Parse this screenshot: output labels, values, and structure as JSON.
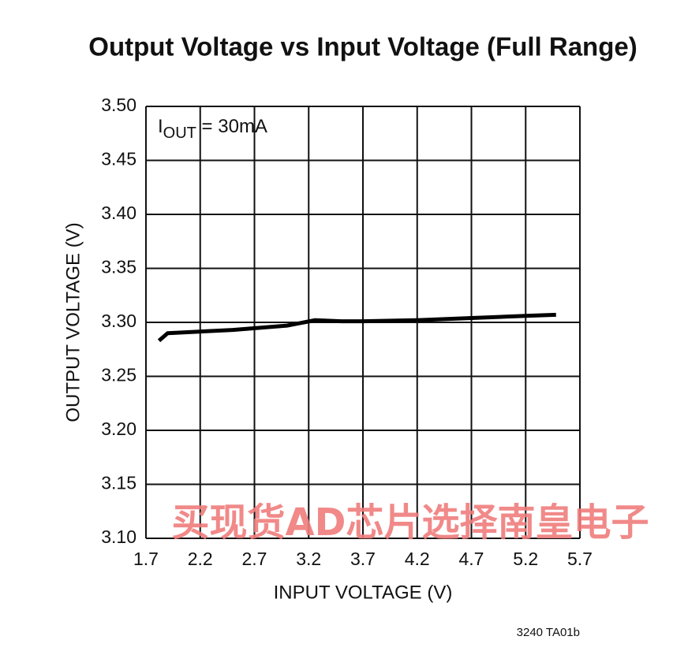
{
  "chart_data": {
    "type": "line",
    "title": "Output Voltage vs Input Voltage (Full Range)",
    "x_label": "INPUT VOLTAGE (V)",
    "y_label": "OUTPUT VOLTAGE (V)",
    "annotation": {
      "main": "I",
      "sub": "OUT",
      "rest": " = 30mA"
    },
    "figure_id": "3240 TA01b",
    "watermark": "买现货AD芯片选择南皇电子",
    "x": [
      1.82,
      1.9,
      2.5,
      3.0,
      3.26,
      3.5,
      3.7,
      4.2,
      4.7,
      5.2,
      5.48
    ],
    "series": [
      {
        "color": "#000000",
        "values": [
          3.283,
          3.29,
          3.293,
          3.297,
          3.302,
          3.301,
          3.301,
          3.302,
          3.304,
          3.306,
          3.307
        ]
      }
    ],
    "xlim": [
      1.7,
      5.7
    ],
    "xticks": [
      1.7,
      2.2,
      2.7,
      3.2,
      3.7,
      4.2,
      4.7,
      5.2,
      5.7
    ],
    "ylim": [
      3.1,
      3.5
    ],
    "yticks": [
      {
        "value": 3.1,
        "label": "3.10"
      },
      {
        "value": 3.15,
        "label": "3.15"
      },
      {
        "value": 3.2,
        "label": "3.20"
      },
      {
        "value": 3.25,
        "label": "3.25"
      },
      {
        "value": 3.3,
        "label": "3.30"
      },
      {
        "value": 3.35,
        "label": "3.35"
      },
      {
        "value": 3.4,
        "label": "3.40"
      },
      {
        "value": 3.45,
        "label": "3.45"
      },
      {
        "value": 3.5,
        "label": "3.50"
      }
    ],
    "grid": true
  }
}
